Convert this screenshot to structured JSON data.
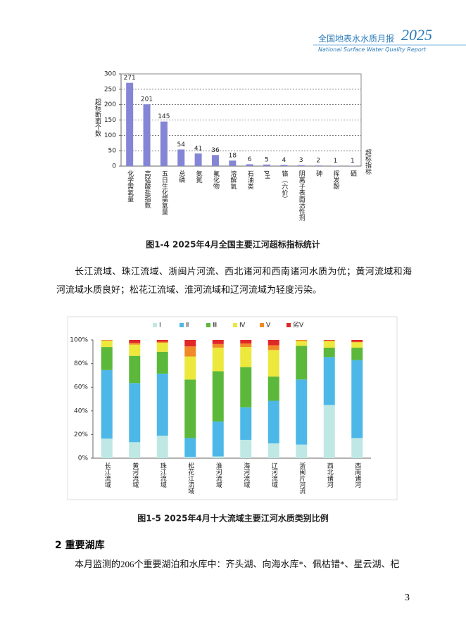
{
  "header": {
    "title_cn": "全国地表水水质月报",
    "year": "2025",
    "title_en": "National Surface Water Quality Report"
  },
  "chart_data": [
    {
      "type": "bar",
      "title": "图1-4  2025年4月全国主要江河超标指标统计",
      "y_label": "超标断面个数",
      "x_label": "超标指标",
      "categories": [
        "化学需氧量",
        "高锰酸盐指数",
        "五日生化需氧量",
        "总磷",
        "氨氮",
        "氟化物",
        "溶解氧",
        "石油类",
        "pH",
        "铬（六价）",
        "阴离子表面活性剂",
        "砷",
        "挥发酚",
        "硒"
      ],
      "values": [
        271,
        201,
        145,
        54,
        41,
        36,
        18,
        6,
        5,
        4,
        3,
        2,
        1,
        1
      ],
      "color": "#8585d6",
      "ylim": [
        0,
        300
      ],
      "yticks": [
        0,
        50,
        100,
        150,
        200,
        250,
        300
      ],
      "grid": true
    },
    {
      "type": "stacked_bar",
      "title": "图1-5  2025年4月十大流域主要江河水质类别比例",
      "categories": [
        "长江流域",
        "黄河流域",
        "珠江流域",
        "松花江流域",
        "淮河流域",
        "海河流域",
        "辽河流域",
        "浙闽片河流",
        "西北诸河",
        "西南诸河"
      ],
      "series": [
        {
          "name": "Ⅰ",
          "color": "#bfe8e4",
          "values": [
            16.5,
            13.5,
            19,
            1,
            1.5,
            15.5,
            12.5,
            11.5,
            45,
            17
          ]
        },
        {
          "name": "Ⅱ",
          "color": "#4db8e8",
          "values": [
            58,
            50,
            52.5,
            16,
            29.5,
            27.5,
            36,
            55,
            40.5,
            66
          ]
        },
        {
          "name": "Ⅲ",
          "color": "#5cb83a",
          "values": [
            19.5,
            23,
            18.5,
            49.5,
            42.5,
            34,
            20.5,
            28.5,
            8,
            10.5
          ]
        },
        {
          "name": "Ⅳ",
          "color": "#ece83c",
          "values": [
            5.5,
            9.5,
            7.5,
            19.5,
            20,
            17,
            22.5,
            4,
            5.5,
            4.5
          ]
        },
        {
          "name": "Ⅴ",
          "color": "#f08a28",
          "values": [
            0.3,
            1.5,
            1,
            8.5,
            3,
            3,
            4,
            1,
            0.5,
            0.5
          ]
        },
        {
          "name": "劣Ⅴ",
          "color": "#e02828",
          "values": [
            0.2,
            2.5,
            1.5,
            5.5,
            3.5,
            3,
            4.5,
            0,
            0.5,
            1.5
          ]
        }
      ],
      "ylim": [
        0,
        100
      ],
      "yticks": [
        {
          "value": 0,
          "label": "0%"
        },
        {
          "value": 20,
          "label": "20%"
        },
        {
          "value": 40,
          "label": "40%"
        },
        {
          "value": 60,
          "label": "60%"
        },
        {
          "value": 80,
          "label": "80%"
        },
        {
          "value": 100,
          "label": "100%"
        }
      ],
      "grid": false
    }
  ],
  "paragraphs": [
    "长江流域、珠江流域、浙闽片河流、西北诸河和西南诸河水质为优；黄河流域和海河流域水质良好；松花江流域、淮河流域和辽河流域为轻度污染。",
    "本月监测的206个重要湖泊和水库中：齐头湖、向海水库*、佩枯错*、星云湖、杞"
  ],
  "section_title": "2 重要湖库",
  "page_number": "3"
}
